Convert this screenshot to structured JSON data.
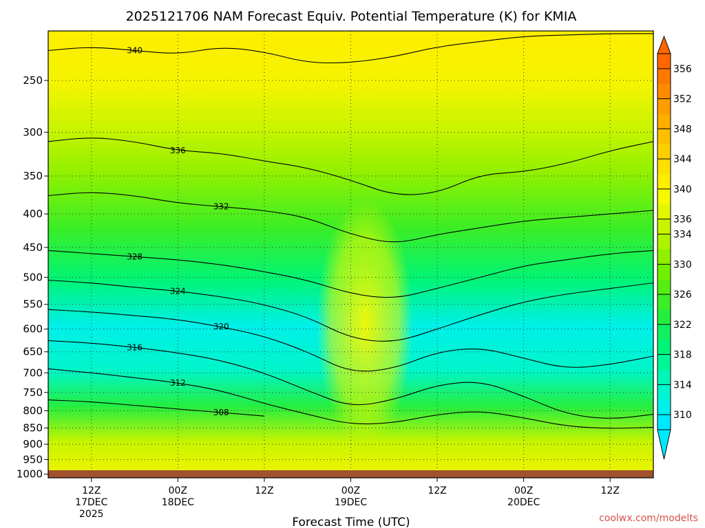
{
  "chart_data": {
    "type": "heatmap",
    "title": "2025121706 NAM Forecast Equiv. Potential Temperature (K) for KMIA",
    "xlabel": "Forecast Time (UTC)",
    "ylabel": "",
    "credit": "coolwx.com/modelts",
    "y_axis": {
      "scale": "log",
      "reversed": true,
      "range": [
        1013,
        210
      ],
      "ticks": [
        250,
        300,
        350,
        400,
        450,
        500,
        550,
        600,
        650,
        700,
        750,
        800,
        850,
        900,
        950,
        1000
      ]
    },
    "x_axis": {
      "range_hours": [
        0,
        84
      ],
      "ticks": [
        {
          "hour": 6,
          "line1": "12Z",
          "line2": "17DEC",
          "line3": "2025"
        },
        {
          "hour": 18,
          "line1": "00Z",
          "line2": "18DEC",
          "line3": ""
        },
        {
          "hour": 30,
          "line1": "12Z",
          "line2": "",
          "line3": ""
        },
        {
          "hour": 42,
          "line1": "00Z",
          "line2": "19DEC",
          "line3": ""
        },
        {
          "hour": 54,
          "line1": "12Z",
          "line2": "",
          "line3": ""
        },
        {
          "hour": 66,
          "line1": "00Z",
          "line2": "20DEC",
          "line3": ""
        },
        {
          "hour": 78,
          "line1": "12Z",
          "line2": "",
          "line3": ""
        }
      ]
    },
    "grid": true,
    "colorbar": {
      "levels": [
        308,
        310,
        312,
        314,
        316,
        318,
        320,
        322,
        324,
        326,
        328,
        330,
        332,
        334,
        336,
        338,
        340,
        342,
        344,
        346,
        348,
        350,
        352,
        354,
        356,
        358
      ],
      "colors": [
        "#00e8ff",
        "#00f0ea",
        "#00f5d0",
        "#00f7b5",
        "#00f795",
        "#00f478",
        "#10f060",
        "#25ee40",
        "#3bee25",
        "#55ee10",
        "#72ef00",
        "#90f000",
        "#aef200",
        "#c8f400",
        "#e2f600",
        "#f8f800",
        "#ffee00",
        "#ffe000",
        "#ffd000",
        "#ffc000",
        "#ffae00",
        "#ff9c00",
        "#ff8a00",
        "#ff7800",
        "#ff6600"
      ],
      "tick_labels": [
        310,
        314,
        318,
        322,
        326,
        330,
        334,
        336,
        340,
        344,
        348,
        352,
        356
      ]
    },
    "series": [
      {
        "name": "340",
        "values": [
          [
            0,
            225
          ],
          [
            6,
            222
          ],
          [
            12,
            225
          ],
          [
            18,
            228
          ],
          [
            24,
            222
          ],
          [
            30,
            226
          ],
          [
            36,
            235
          ],
          [
            42,
            235
          ],
          [
            48,
            230
          ],
          [
            54,
            222
          ],
          [
            60,
            218
          ],
          [
            66,
            214
          ],
          [
            72,
            213
          ],
          [
            78,
            212
          ],
          [
            84,
            212
          ]
        ]
      },
      {
        "name": "336",
        "values": [
          [
            0,
            310
          ],
          [
            6,
            305
          ],
          [
            12,
            310
          ],
          [
            18,
            320
          ],
          [
            24,
            323
          ],
          [
            30,
            332
          ],
          [
            36,
            340
          ],
          [
            42,
            355
          ],
          [
            48,
            375
          ],
          [
            54,
            372
          ],
          [
            60,
            348
          ],
          [
            66,
            345
          ],
          [
            72,
            335
          ],
          [
            78,
            320
          ],
          [
            84,
            310
          ]
        ]
      },
      {
        "name": "332",
        "values": [
          [
            0,
            375
          ],
          [
            6,
            370
          ],
          [
            12,
            375
          ],
          [
            18,
            385
          ],
          [
            24,
            390
          ],
          [
            30,
            395
          ],
          [
            36,
            405
          ],
          [
            42,
            430
          ],
          [
            48,
            445
          ],
          [
            54,
            430
          ],
          [
            60,
            420
          ],
          [
            66,
            410
          ],
          [
            72,
            405
          ],
          [
            78,
            400
          ],
          [
            84,
            395
          ]
        ]
      },
      {
        "name": "328",
        "values": [
          [
            0,
            455
          ],
          [
            6,
            460
          ],
          [
            12,
            465
          ],
          [
            18,
            470
          ],
          [
            24,
            478
          ],
          [
            30,
            490
          ],
          [
            36,
            505
          ],
          [
            42,
            530
          ],
          [
            48,
            540
          ],
          [
            54,
            520
          ],
          [
            60,
            500
          ],
          [
            66,
            480
          ],
          [
            72,
            470
          ],
          [
            78,
            460
          ],
          [
            84,
            455
          ]
        ]
      },
      {
        "name": "324",
        "values": [
          [
            0,
            505
          ],
          [
            6,
            510
          ],
          [
            12,
            518
          ],
          [
            18,
            525
          ],
          [
            24,
            535
          ],
          [
            30,
            550
          ],
          [
            36,
            575
          ],
          [
            42,
            620
          ],
          [
            48,
            630
          ],
          [
            54,
            600
          ],
          [
            60,
            570
          ],
          [
            66,
            545
          ],
          [
            72,
            530
          ],
          [
            78,
            520
          ],
          [
            84,
            510
          ]
        ]
      },
      {
        "name": "320",
        "values": [
          [
            0,
            560
          ],
          [
            6,
            565
          ],
          [
            12,
            572
          ],
          [
            18,
            580
          ],
          [
            24,
            595
          ],
          [
            30,
            615
          ],
          [
            36,
            650
          ],
          [
            42,
            700
          ],
          [
            48,
            690
          ],
          [
            54,
            650
          ],
          [
            60,
            640
          ],
          [
            66,
            665
          ],
          [
            72,
            690
          ],
          [
            78,
            680
          ],
          [
            84,
            660
          ]
        ]
      },
      {
        "name": "316",
        "values": [
          [
            0,
            625
          ],
          [
            6,
            630
          ],
          [
            12,
            640
          ],
          [
            18,
            652
          ],
          [
            24,
            670
          ],
          [
            30,
            700
          ],
          [
            36,
            745
          ],
          [
            42,
            790
          ],
          [
            48,
            770
          ],
          [
            54,
            730
          ],
          [
            60,
            720
          ],
          [
            66,
            760
          ],
          [
            72,
            810
          ],
          [
            78,
            825
          ],
          [
            84,
            810
          ]
        ]
      },
      {
        "name": "312",
        "values": [
          [
            0,
            690
          ],
          [
            6,
            700
          ],
          [
            12,
            712
          ],
          [
            18,
            725
          ],
          [
            24,
            745
          ],
          [
            30,
            780
          ],
          [
            36,
            810
          ],
          [
            42,
            840
          ],
          [
            48,
            835
          ],
          [
            54,
            810
          ],
          [
            60,
            800
          ],
          [
            66,
            820
          ],
          [
            72,
            845
          ],
          [
            78,
            852
          ],
          [
            84,
            848
          ]
        ]
      },
      {
        "name": "308",
        "values": [
          [
            0,
            770
          ],
          [
            6,
            775
          ],
          [
            12,
            785
          ],
          [
            18,
            795
          ],
          [
            24,
            805
          ],
          [
            30,
            815
          ]
        ]
      }
    ]
  }
}
